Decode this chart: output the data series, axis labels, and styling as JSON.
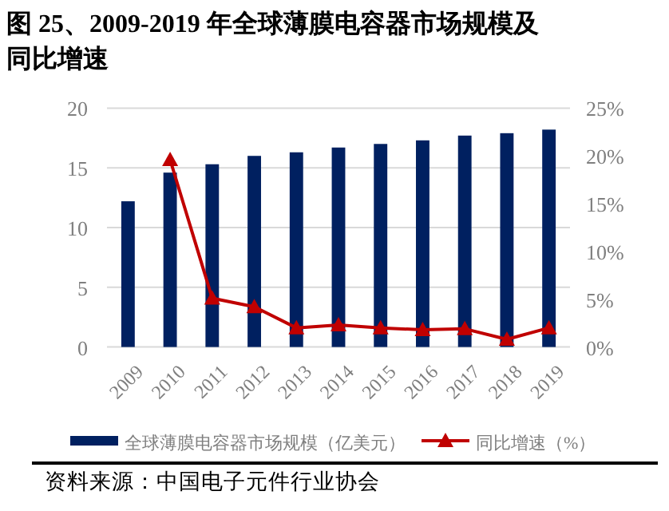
{
  "chart_data": {
    "type": "bar",
    "title": "图 25、2009-2019 年全球薄膜电容器市场规模及同比增速",
    "categories": [
      "2009",
      "2010",
      "2011",
      "2012",
      "2013",
      "2014",
      "2015",
      "2016",
      "2017",
      "2018",
      "2019"
    ],
    "series": [
      {
        "name": "全球薄膜电容器市场规模（亿美元）",
        "color": "#002060",
        "values": [
          12.2,
          14.6,
          15.3,
          16.0,
          16.3,
          16.7,
          17.0,
          17.3,
          17.7,
          17.9,
          18.2
        ]
      },
      {
        "name": "同比增速（%）",
        "type": "line",
        "axis": "y2",
        "color": "#c00000",
        "marker": "triangle",
        "values": [
          null,
          19.6,
          5.1,
          4.2,
          2.0,
          2.3,
          2.0,
          1.8,
          1.9,
          0.8,
          2.0
        ]
      }
    ],
    "ylim": [
      0,
      20
    ],
    "yticks": [
      0,
      5,
      10,
      15,
      20
    ],
    "y2lim": [
      0,
      25
    ],
    "y2ticks": [
      {
        "value": 0,
        "label": "0%"
      },
      {
        "value": 5,
        "label": "5%"
      },
      {
        "value": 10,
        "label": "10%"
      },
      {
        "value": 15,
        "label": "15%"
      },
      {
        "value": 20,
        "label": "20%"
      },
      {
        "value": 25,
        "label": "25%"
      }
    ],
    "grid": "y",
    "legend": "bottom",
    "annotations": [
      "资料来源：中国电子元件行业协会"
    ]
  }
}
